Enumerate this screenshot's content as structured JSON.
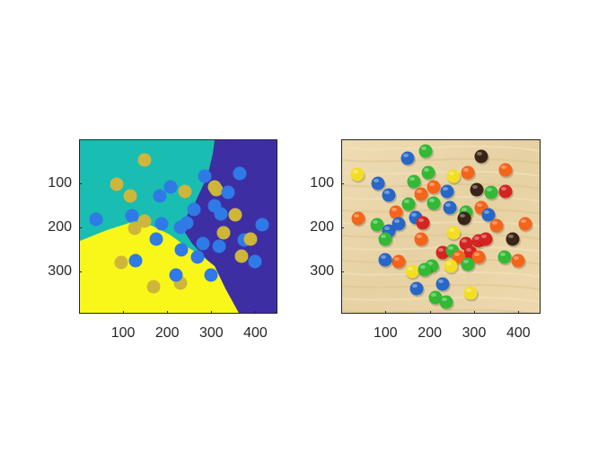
{
  "figure": {
    "left_panel": {
      "kind": "segmented-label-map",
      "x_ticks": [
        "100",
        "200",
        "300",
        "400"
      ],
      "y_ticks": [
        "100",
        "200",
        "300"
      ],
      "x_tick_values": [
        100,
        200,
        300,
        400
      ],
      "y_tick_values": [
        100,
        200,
        300
      ],
      "x_range": [
        0,
        450
      ],
      "y_range": [
        0,
        395
      ],
      "colors": {
        "teal": "#19bdb1",
        "navy": "#3d2fa3",
        "yellow": "#f9f71a",
        "blue": "#2f7ae6",
        "mustard": "#cdb63a"
      }
    },
    "right_panel": {
      "kind": "photo-candies-on-wood",
      "x_ticks": [
        "100",
        "200",
        "300",
        "400"
      ],
      "y_ticks": [
        "100",
        "200",
        "300"
      ],
      "x_tick_values": [
        100,
        200,
        300,
        400
      ],
      "y_tick_values": [
        100,
        200,
        300
      ],
      "x_range": [
        0,
        450
      ],
      "y_range": [
        0,
        395
      ],
      "colors": {
        "wood": "#e9d6aa",
        "red": "#d4241f",
        "orange": "#f5641a",
        "yellow": "#f3de22",
        "green": "#33b935",
        "blue": "#2767c8",
        "brown": "#3a2418"
      }
    }
  }
}
